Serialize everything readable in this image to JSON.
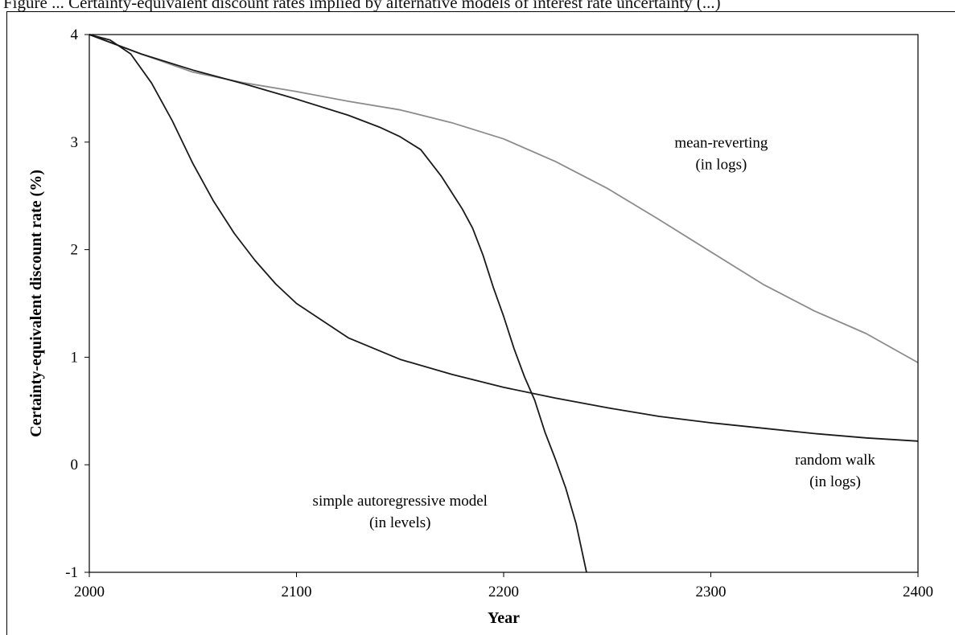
{
  "caption": "Figure ... Certainty-equivalent discount rates implied by alternative models of interest rate uncertainty (...)",
  "colors": {
    "black_series": "#1a1a1a",
    "gray_series": "#8c8c8c",
    "frame": "#000000"
  },
  "chart_data": {
    "type": "line",
    "title": "",
    "xlabel": "Year",
    "ylabel": "Certainty-equivalent discount rate (%)",
    "xlim": [
      2000,
      2400
    ],
    "ylim": [
      -1,
      4
    ],
    "xticks": [
      "2000",
      "2100",
      "2200",
      "2300",
      "2400"
    ],
    "yticks": [
      "-1",
      "0",
      "1",
      "2",
      "3",
      "4"
    ],
    "grid": false,
    "legend": "none",
    "series": [
      {
        "name": "mean-reverting (in logs)",
        "color": "#8c8c8c",
        "x": [
          2000,
          2025,
          2050,
          2075,
          2100,
          2125,
          2150,
          2175,
          2200,
          2225,
          2250,
          2275,
          2300,
          2325,
          2350,
          2375,
          2400
        ],
        "y": [
          4.0,
          3.82,
          3.65,
          3.55,
          3.47,
          3.38,
          3.3,
          3.18,
          3.03,
          2.82,
          2.57,
          2.28,
          1.98,
          1.68,
          1.43,
          1.22,
          0.95
        ]
      },
      {
        "name": "simple autoregressive model (in levels)",
        "color": "#1a1a1a",
        "x": [
          2000,
          2025,
          2050,
          2075,
          2100,
          2125,
          2140,
          2150,
          2160,
          2170,
          2180,
          2185,
          2190,
          2195,
          2200,
          2205,
          2210,
          2215,
          2220,
          2225,
          2230,
          2235,
          2240
        ],
        "y": [
          4.0,
          3.82,
          3.67,
          3.54,
          3.4,
          3.25,
          3.14,
          3.05,
          2.93,
          2.68,
          2.38,
          2.2,
          1.95,
          1.65,
          1.38,
          1.08,
          0.82,
          0.6,
          0.3,
          0.05,
          -0.22,
          -0.55,
          -1.0
        ]
      },
      {
        "name": "random walk (in logs)",
        "color": "#1a1a1a",
        "x": [
          2000,
          2010,
          2020,
          2030,
          2040,
          2050,
          2060,
          2070,
          2080,
          2090,
          2100,
          2125,
          2150,
          2175,
          2200,
          2225,
          2250,
          2275,
          2300,
          2325,
          2350,
          2375,
          2400
        ],
        "y": [
          4.0,
          3.95,
          3.82,
          3.55,
          3.2,
          2.8,
          2.45,
          2.15,
          1.9,
          1.68,
          1.5,
          1.18,
          0.98,
          0.84,
          0.72,
          0.62,
          0.53,
          0.45,
          0.39,
          0.34,
          0.29,
          0.25,
          0.22
        ]
      }
    ],
    "annotations": [
      {
        "series": "mean-reverting (in logs)",
        "lines": [
          "mean-reverting",
          "(in logs)"
        ],
        "x": 2305,
        "y": 2.95
      },
      {
        "series": "simple autoregressive model (in levels)",
        "lines": [
          "simple autoregressive model",
          "(in levels)"
        ],
        "x": 2150,
        "y": -0.38
      },
      {
        "series": "random walk (in logs)",
        "lines": [
          "random walk",
          "(in logs)"
        ],
        "x": 2360,
        "y": 0.0
      }
    ]
  }
}
